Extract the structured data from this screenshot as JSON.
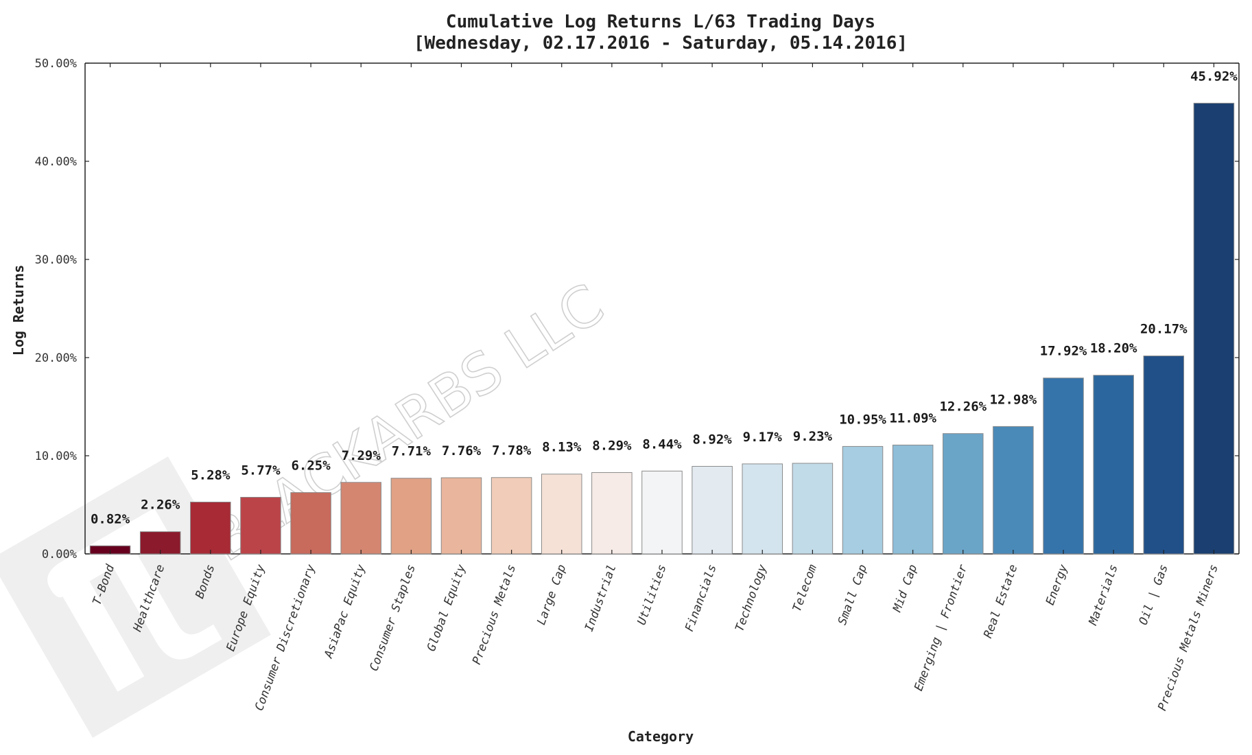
{
  "chart_data": {
    "type": "bar",
    "title": "Cumulative Log Returns L/63 Trading Days",
    "subtitle": "[Wednesday, 02.17.2016 - Saturday, 05.14.2016]",
    "xlabel": "Category",
    "ylabel": "Log Returns",
    "ylim": [
      0,
      50
    ],
    "yticks": [
      "0.00%",
      "10.00%",
      "20.00%",
      "30.00%",
      "40.00%",
      "50.00%"
    ],
    "grid": false,
    "categories": [
      "T-Bond",
      "Healthcare",
      "Bonds",
      "Europe Equity",
      "Consumer Discretionary",
      "AsiaPac Equity",
      "Consumer Staples",
      "Global Equity",
      "Precious Metals",
      "Large Cap",
      "Industrial",
      "Utilities",
      "Financials",
      "Technology",
      "Telecom",
      "Small Cap",
      "Mid Cap",
      "Emerging | Frontier",
      "Real Estate",
      "Energy",
      "Materials",
      "Oil | Gas",
      "Precious Metals Miners"
    ],
    "values": [
      0.82,
      2.26,
      5.28,
      5.77,
      6.25,
      7.29,
      7.71,
      7.76,
      7.78,
      8.13,
      8.29,
      8.44,
      8.92,
      9.17,
      9.23,
      10.95,
      11.09,
      12.26,
      12.98,
      17.92,
      18.2,
      20.17,
      45.92
    ],
    "value_labels": [
      "0.82%",
      "2.26%",
      "5.28%",
      "5.77%",
      "6.25%",
      "7.29%",
      "7.71%",
      "7.76%",
      "7.78%",
      "8.13%",
      "8.29%",
      "8.44%",
      "8.92%",
      "9.17%",
      "9.23%",
      "10.95%",
      "11.09%",
      "12.26%",
      "12.98%",
      "17.92%",
      "18.20%",
      "20.17%",
      "45.92%"
    ],
    "colors": [
      "#67001f",
      "#8b1a2c",
      "#a72a35",
      "#bb4449",
      "#c86a5c",
      "#d48671",
      "#e0a184",
      "#e9b59c",
      "#f1ccb8",
      "#f6e1d6",
      "#f6ebe6",
      "#f3f4f5",
      "#e3ebf1",
      "#d4e4ee",
      "#c2dbe8",
      "#a6cde2",
      "#8ebed8",
      "#6aa5c8",
      "#4a8ab9",
      "#3574ab",
      "#2b679e",
      "#215089",
      "#1a3f70"
    ]
  },
  "watermark": {
    "text": "BLACKARBS LLC",
    "logo_icon": "pi-logo-icon"
  }
}
